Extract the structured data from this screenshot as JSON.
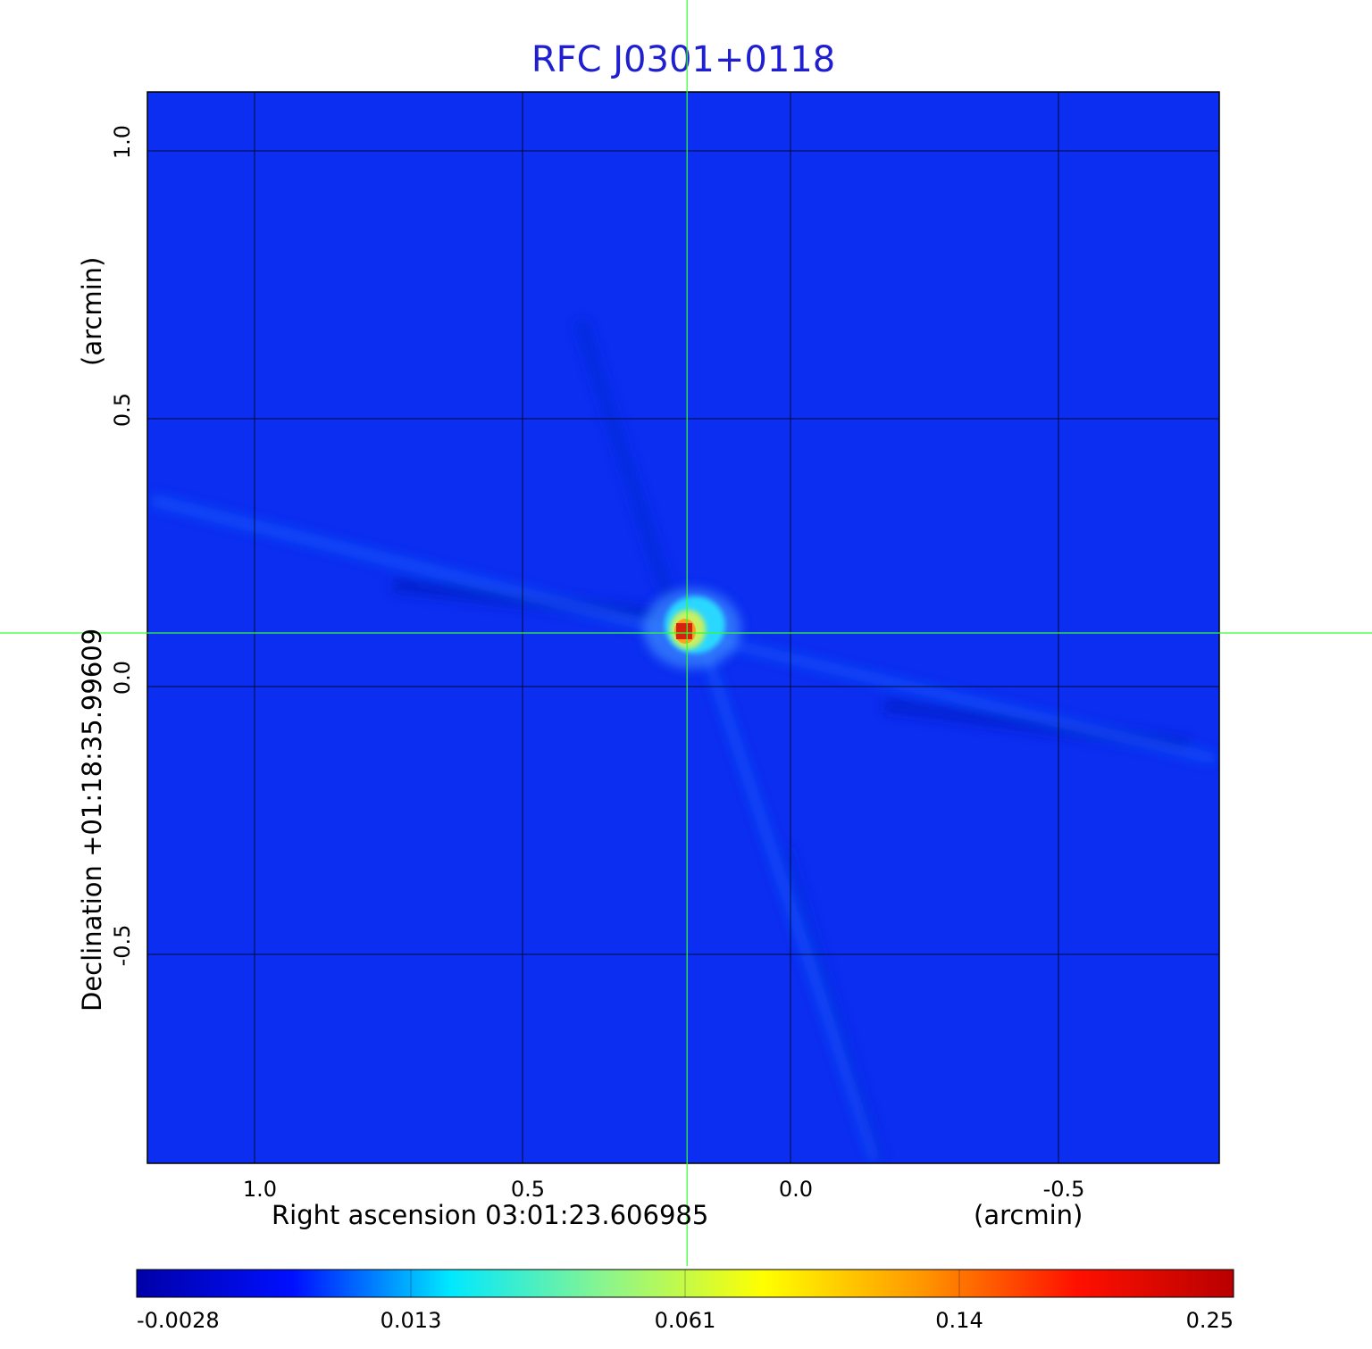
{
  "chart_data": {
    "type": "heatmap",
    "title": "RFC J0301+0118",
    "xlabel": "Right ascension  03:01:23.606985",
    "xunit": "(arcmin)",
    "ylabel": "Declination  +01:18:35.99609",
    "yunit": "(arcmin)",
    "xlim": [
      1.2,
      -0.8
    ],
    "ylim": [
      -0.89,
      1.11
    ],
    "x_ticks": [
      1.0,
      0.5,
      0.0,
      -0.5
    ],
    "x_tick_labels": [
      "1.0",
      "0.5",
      "0.0",
      "-0.5"
    ],
    "y_ticks": [
      1.0,
      0.5,
      0.0,
      -0.5
    ],
    "y_tick_labels": [
      "1.0",
      "0.5",
      "0.0",
      "-0.5"
    ],
    "grid": true,
    "crosshair": [
      0.193,
      0.1
    ],
    "source_peak": {
      "x": 0.193,
      "y": 0.1,
      "value": 0.25
    },
    "colorbar": {
      "ticks": [
        -0.0028,
        0.013,
        0.061,
        0.14,
        0.25
      ],
      "labels": [
        "-0.0028",
        "0.013",
        "0.061",
        "0.14",
        "0.25"
      ],
      "colors": [
        "#0000a8",
        "#0010ff",
        "#00e8ff",
        "#8cf58c",
        "#ffff00",
        "#ff9800",
        "#ff1000",
        "#b80000"
      ]
    },
    "colors": {
      "background": "#0b2ef0",
      "title": "#1f1fd0",
      "crosshair": "#33ff33",
      "grid": "#000000"
    }
  }
}
